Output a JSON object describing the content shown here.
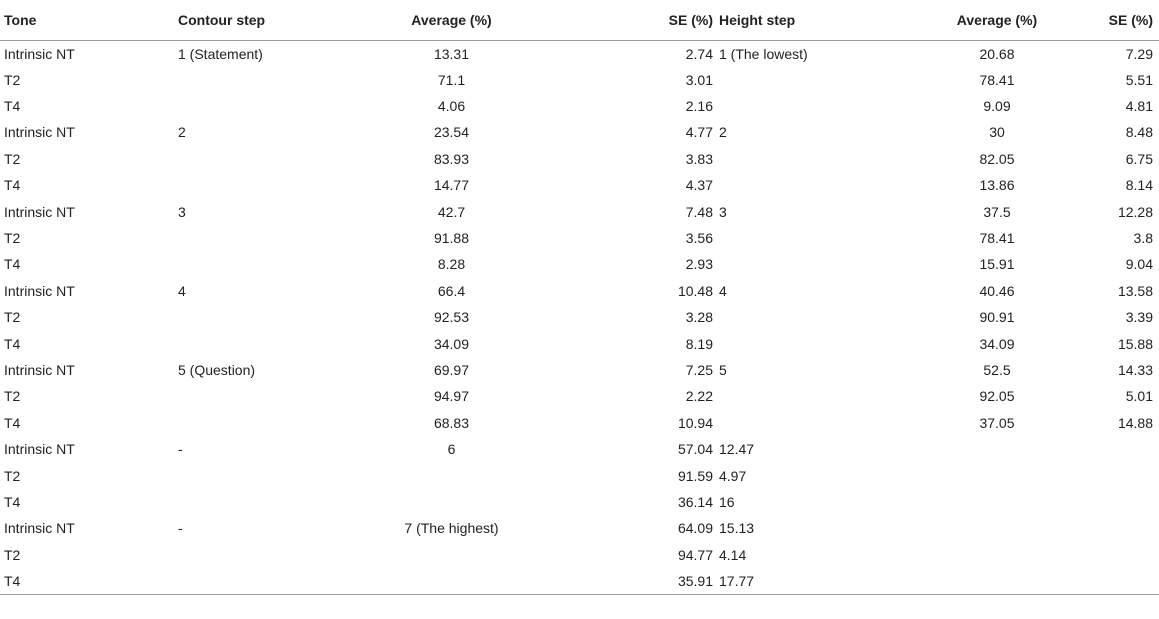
{
  "table": {
    "headers": [
      "Tone",
      "Contour step",
      "Average (%)",
      "SE (%)",
      "Height step",
      "Average (%)",
      "SE (%)"
    ],
    "rows": [
      [
        "Intrinsic NT",
        "1 (Statement)",
        "13.31",
        "2.74",
        "1 (The lowest)",
        "20.68",
        "7.29"
      ],
      [
        "T2",
        "",
        "71.1",
        "3.01",
        "",
        "78.41",
        "5.51"
      ],
      [
        "T4",
        "",
        "4.06",
        "2.16",
        "",
        "9.09",
        "4.81"
      ],
      [
        "Intrinsic NT",
        "2",
        "23.54",
        "4.77",
        "2",
        "30",
        "8.48"
      ],
      [
        "T2",
        "",
        "83.93",
        "3.83",
        "",
        "82.05",
        "6.75"
      ],
      [
        "T4",
        "",
        "14.77",
        "4.37",
        "",
        "13.86",
        "8.14"
      ],
      [
        "Intrinsic NT",
        "3",
        "42.7",
        "7.48",
        "3",
        "37.5",
        "12.28"
      ],
      [
        "T2",
        "",
        "91.88",
        "3.56",
        "",
        "78.41",
        "3.8"
      ],
      [
        "T4",
        "",
        "8.28",
        "2.93",
        "",
        "15.91",
        "9.04"
      ],
      [
        "Intrinsic NT",
        "4",
        "66.4",
        "10.48",
        "4",
        "40.46",
        "13.58"
      ],
      [
        "T2",
        "",
        "92.53",
        "3.28",
        "",
        "90.91",
        "3.39"
      ],
      [
        "T4",
        "",
        "34.09",
        "8.19",
        "",
        "34.09",
        "15.88"
      ],
      [
        "Intrinsic NT",
        "5 (Question)",
        "69.97",
        "7.25",
        "5",
        "52.5",
        "14.33"
      ],
      [
        "T2",
        "",
        "94.97",
        "2.22",
        "",
        "92.05",
        "5.01"
      ],
      [
        "T4",
        "",
        "68.83",
        "10.94",
        "",
        "37.05",
        "14.88"
      ],
      [
        "Intrinsic NT",
        "-",
        "6",
        "57.04",
        "12.47",
        "",
        ""
      ],
      [
        "T2",
        "",
        "",
        "91.59",
        "4.97",
        "",
        ""
      ],
      [
        "T4",
        "",
        "",
        "36.14",
        "16",
        "",
        ""
      ],
      [
        "Intrinsic NT",
        "-",
        "7 (The highest)",
        "64.09",
        "15.13",
        "",
        ""
      ],
      [
        "T2",
        "",
        "",
        "94.77",
        "4.14",
        "",
        ""
      ],
      [
        "T4",
        "",
        "",
        "35.91",
        "17.77",
        "",
        ""
      ]
    ]
  }
}
